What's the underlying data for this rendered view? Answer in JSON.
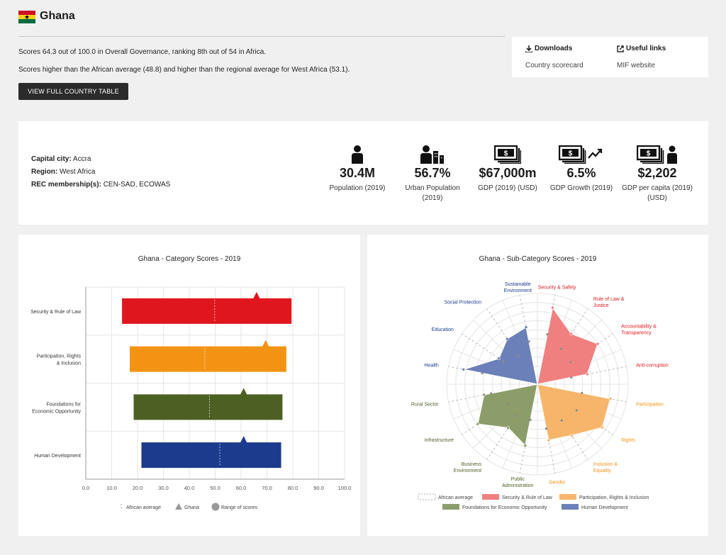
{
  "header": {
    "title": "Ghana"
  },
  "summary": {
    "line1": "Scores 64.3 out of 100.0 in Overall Governance, ranking 8th out of 54 in Africa.",
    "line2": "Scores higher than the African average (48.8) and higher than the regional average for West Africa (53.1).",
    "button_label": "VIEW FULL COUNTRY TABLE"
  },
  "links": {
    "downloads_head": "Downloads",
    "downloads_item": "Country scorecard",
    "useful_head": "Useful links",
    "useful_item": "MIF website"
  },
  "info": {
    "capital_label": "Capital city:",
    "capital_value": "Accra",
    "region_label": "Region:",
    "region_value": "West Africa",
    "rec_label": "REC membership(s):",
    "rec_value": "CEN-SAD, ECOWAS"
  },
  "stats": [
    {
      "value": "30.4M",
      "label": "Population (2019)",
      "icon": "person-icon"
    },
    {
      "value": "56.7%",
      "label": "Urban Population (2019)",
      "icon": "urban-icon"
    },
    {
      "value": "$67,000m",
      "label": "GDP (2019) (USD)",
      "icon": "money-icon"
    },
    {
      "value": "6.5%",
      "label": "GDP Growth (2019)",
      "icon": "money-growth-icon"
    },
    {
      "value": "$2,202",
      "label": "GDP per capita (2019) (USD)",
      "icon": "money-person-icon"
    }
  ],
  "colors": {
    "security": "#e0161e",
    "participation": "#f39313",
    "foundations": "#4d6023",
    "human": "#1b3b8c",
    "security_light": "#f08080",
    "participation_light": "#f7b56b",
    "foundations_light": "#8c9d6a",
    "human_light": "#6b80b8"
  },
  "chart_data": [
    {
      "type": "bar",
      "title": "Ghana - Category Scores - 2019",
      "categories": [
        "Security & Rule of Law",
        "Participation, Rights & Inclusion",
        "Foundations for Economic Opportunity",
        "Human Development"
      ],
      "range_min": [
        14.0,
        17.0,
        18.5,
        21.5
      ],
      "range_max": [
        79.5,
        77.5,
        76.0,
        75.5
      ],
      "ghana": [
        66.0,
        69.5,
        61.0,
        61.0
      ],
      "african_average": [
        49.8,
        46.0,
        47.8,
        51.8
      ],
      "xlim": [
        0,
        100
      ],
      "xticks": [
        "0.0",
        "10.0",
        "20.0",
        "30.0",
        "40.0",
        "50.0",
        "60.0",
        "70.0",
        "80.0",
        "90.0",
        "100.0"
      ],
      "legend": [
        "African average",
        "Ghana",
        "Range of scores"
      ],
      "grid": true
    },
    {
      "type": "radar",
      "title": "Ghana - Sub-Category Scores - 2019",
      "axes": [
        "Security & Safety",
        "Rule of Law & Justice",
        "Accountability & Transparency",
        "Anti-corruption",
        "Participation",
        "Rights",
        "Inclusion & Equality",
        "Gender",
        "Public Administration",
        "Business Environment",
        "Infrastructure",
        "Rural Sector",
        "Health",
        "Education",
        "Social Protection",
        "Sustainable Environment"
      ],
      "axis_groups": [
        "security",
        "security",
        "security",
        "security",
        "participation",
        "participation",
        "participation",
        "participation",
        "foundations",
        "foundations",
        "foundations",
        "foundations",
        "human",
        "human",
        "human",
        "human"
      ],
      "ghana": [
        86.0,
        67.0,
        80.0,
        56.0,
        82.0,
        86.0,
        68.0,
        63.0,
        69.0,
        58.0,
        79.0,
        60.0,
        83.0,
        51.0,
        60.0,
        64.0
      ],
      "african_average": [
        56,
        47,
        44,
        38,
        50,
        52,
        48,
        50,
        40,
        42,
        40,
        52,
        62,
        45,
        38,
        48
      ],
      "rmax": 100,
      "legend": [
        "African average",
        "Security & Rule of Law",
        "Participation, Rights & Inclusion",
        "Foundations for Economic Opportunity",
        "Human Development"
      ]
    }
  ]
}
